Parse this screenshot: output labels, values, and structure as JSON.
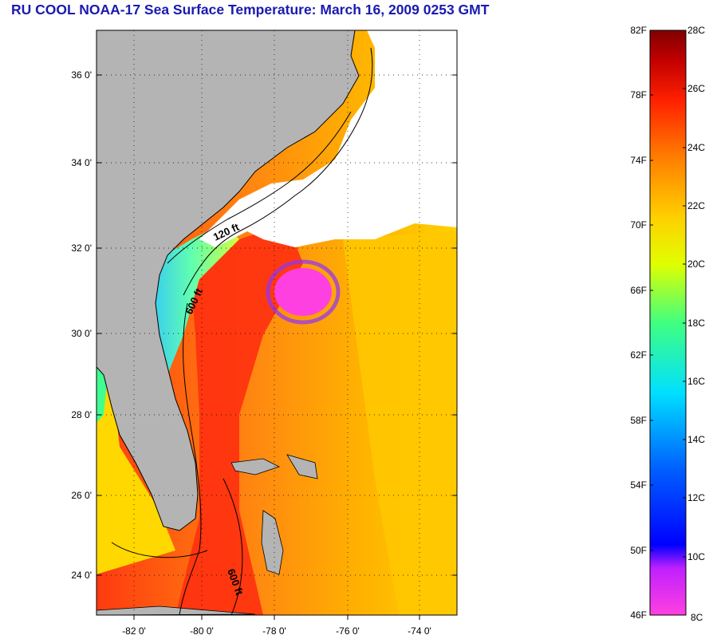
{
  "title": "RU COOL  NOAA-17  Sea Surface Temperature:  March 16, 2009 0253 GMT",
  "map": {
    "lat_labels": [
      "36 0'",
      "34 0'",
      "32 0'",
      "30 0'",
      "28 0'",
      "26 0'",
      "24 0'"
    ],
    "lon_labels": [
      "-82 0'",
      "-80 0'",
      "-78 0'",
      "-76 0'",
      "-74 0'"
    ],
    "contour_labels": [
      "120 ft",
      "600 ft",
      "600 ft"
    ],
    "colors": {
      "land": "#b4b4b4",
      "cloud": "#ffffff",
      "gulf_stream": "#ff3010",
      "offshore": "#ffb000"
    }
  },
  "colorbar": {
    "fahrenheit_labels": [
      "82F",
      "78F",
      "74F",
      "70F",
      "66F",
      "62F",
      "58F",
      "54F",
      "50F",
      "46F"
    ],
    "celsius_labels": [
      "28C",
      "26C",
      "24C",
      "22C",
      "20C",
      "18C",
      "16C",
      "14C",
      "12C",
      "10C",
      "8C"
    ]
  }
}
